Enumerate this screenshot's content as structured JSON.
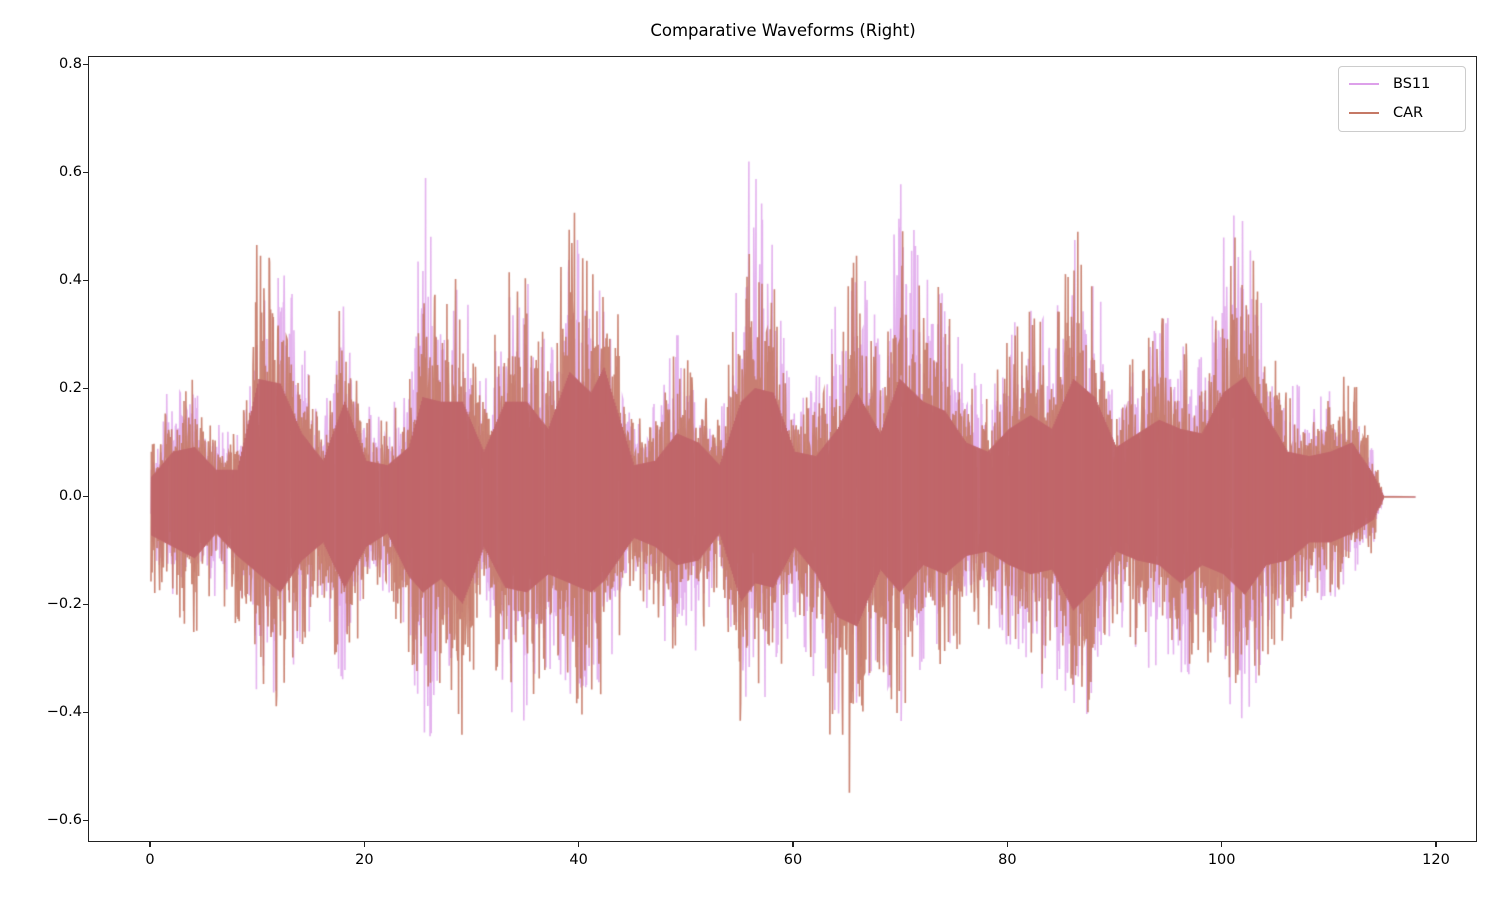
{
  "chart_data": {
    "type": "line",
    "title": "Comparative Waveforms (Right)",
    "xlabel": "",
    "ylabel": "",
    "xlim": [
      -5.8,
      123.8
    ],
    "ylim": [
      -0.64,
      0.815
    ],
    "x_ticks": [
      0,
      20,
      40,
      60,
      80,
      100,
      120
    ],
    "x_tick_labels": [
      "0",
      "20",
      "40",
      "60",
      "80",
      "100",
      "120"
    ],
    "y_ticks": [
      0.8,
      0.6,
      0.4,
      0.2,
      0.0,
      -0.2,
      -0.4,
      -0.6
    ],
    "y_tick_labels": [
      "0.8",
      "0.6",
      "0.4",
      "0.2",
      "0.0",
      "−0.2",
      "−0.4",
      "−0.6"
    ],
    "grid": false,
    "legend_position": "upper right",
    "signal_end_x": 115,
    "flat_until_x": 118,
    "series": [
      {
        "name": "BS11",
        "color": "#dda0ea",
        "alpha": 0.8,
        "envelope_x": [
          0,
          2,
          4,
          6,
          8,
          10,
          12,
          14,
          16,
          18,
          20,
          22,
          24,
          25.3,
          27,
          29,
          31,
          33,
          35,
          37,
          39,
          41,
          43,
          45,
          47,
          49,
          51,
          53,
          55,
          56.3,
          58,
          60,
          62,
          64,
          66,
          68,
          69.8,
          72,
          74,
          76,
          78,
          80,
          82,
          84,
          86,
          88,
          90,
          92,
          94,
          96,
          98,
          100,
          102,
          104,
          106,
          108,
          110,
          112,
          114,
          115
        ],
        "envelope_max": [
          0.08,
          0.24,
          0.2,
          0.14,
          0.12,
          0.32,
          0.6,
          0.3,
          0.16,
          0.4,
          0.18,
          0.16,
          0.24,
          0.67,
          0.45,
          0.42,
          0.2,
          0.38,
          0.42,
          0.28,
          0.5,
          0.5,
          0.3,
          0.14,
          0.18,
          0.32,
          0.28,
          0.14,
          0.44,
          0.75,
          0.5,
          0.2,
          0.22,
          0.38,
          0.5,
          0.3,
          0.62,
          0.45,
          0.38,
          0.26,
          0.22,
          0.3,
          0.38,
          0.3,
          0.55,
          0.45,
          0.22,
          0.28,
          0.36,
          0.34,
          0.26,
          0.56,
          0.56,
          0.33,
          0.22,
          0.2,
          0.2,
          0.15,
          0.1,
          0.0
        ],
        "envelope_min": [
          -0.09,
          -0.2,
          -0.18,
          -0.2,
          -0.16,
          -0.4,
          -0.38,
          -0.3,
          -0.18,
          -0.4,
          -0.2,
          -0.18,
          -0.25,
          -0.52,
          -0.36,
          -0.34,
          -0.2,
          -0.4,
          -0.42,
          -0.32,
          -0.41,
          -0.4,
          -0.3,
          -0.16,
          -0.24,
          -0.33,
          -0.3,
          -0.16,
          -0.38,
          -0.38,
          -0.38,
          -0.22,
          -0.36,
          -0.4,
          -0.42,
          -0.3,
          -0.44,
          -0.32,
          -0.3,
          -0.24,
          -0.22,
          -0.3,
          -0.38,
          -0.34,
          -0.4,
          -0.42,
          -0.24,
          -0.3,
          -0.33,
          -0.36,
          -0.3,
          -0.38,
          -0.49,
          -0.3,
          -0.22,
          -0.2,
          -0.2,
          -0.15,
          -0.1,
          0.0
        ]
      },
      {
        "name": "CAR",
        "color": "#c57865",
        "alpha": 0.9,
        "envelope_x": [
          0,
          2,
          4,
          6,
          8,
          10,
          12,
          14,
          16,
          18,
          20,
          22,
          24,
          25.3,
          27,
          29,
          31,
          33,
          35,
          37,
          39,
          41,
          42.2,
          45,
          47,
          49,
          51,
          53,
          55,
          56.3,
          58,
          60,
          62,
          64,
          65.8,
          68,
          69.8,
          72,
          74,
          76,
          78,
          80,
          82,
          84,
          86,
          88,
          90,
          92,
          94,
          96,
          98,
          100,
          102,
          104,
          106,
          108,
          110,
          112,
          114,
          115
        ],
        "envelope_max": [
          0.09,
          0.2,
          0.22,
          0.12,
          0.12,
          0.52,
          0.5,
          0.28,
          0.16,
          0.42,
          0.16,
          0.14,
          0.22,
          0.44,
          0.42,
          0.42,
          0.2,
          0.42,
          0.42,
          0.3,
          0.55,
          0.46,
          0.57,
          0.14,
          0.16,
          0.28,
          0.24,
          0.14,
          0.42,
          0.48,
          0.46,
          0.2,
          0.18,
          0.3,
          0.46,
          0.28,
          0.52,
          0.42,
          0.38,
          0.24,
          0.2,
          0.3,
          0.36,
          0.3,
          0.52,
          0.44,
          0.22,
          0.28,
          0.34,
          0.3,
          0.28,
          0.46,
          0.53,
          0.36,
          0.2,
          0.18,
          0.2,
          0.24,
          0.1,
          0.0
        ],
        "envelope_min": [
          -0.17,
          -0.22,
          -0.27,
          -0.16,
          -0.26,
          -0.34,
          -0.42,
          -0.28,
          -0.2,
          -0.4,
          -0.22,
          -0.16,
          -0.35,
          -0.42,
          -0.36,
          -0.47,
          -0.22,
          -0.4,
          -0.42,
          -0.34,
          -0.38,
          -0.42,
          -0.37,
          -0.18,
          -0.22,
          -0.3,
          -0.28,
          -0.16,
          -0.46,
          -0.38,
          -0.4,
          -0.22,
          -0.34,
          -0.53,
          -0.57,
          -0.32,
          -0.42,
          -0.3,
          -0.34,
          -0.26,
          -0.24,
          -0.3,
          -0.34,
          -0.32,
          -0.5,
          -0.4,
          -0.24,
          -0.28,
          -0.3,
          -0.38,
          -0.3,
          -0.34,
          -0.43,
          -0.3,
          -0.28,
          -0.2,
          -0.2,
          -0.16,
          -0.1,
          0.0
        ]
      }
    ]
  }
}
